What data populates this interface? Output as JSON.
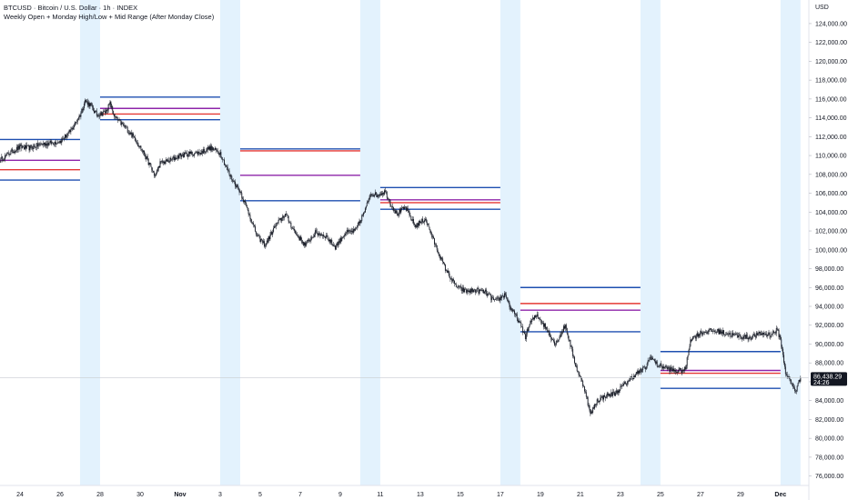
{
  "legend": {
    "title": "BTCUSD · Bitcoin / U.S. Dollar · 1h · INDEX",
    "indicator": "Weekly Open + Monday High/Low + Mid Range (After Monday Close)"
  },
  "currency": "USD",
  "current_price": {
    "value": "86,438.29",
    "countdown": "24:26",
    "numeric": 86438.29
  },
  "colors": {
    "candle": "#131722",
    "monday_session": "#e3f2fd",
    "monday_high_low": "#1e4fb0",
    "weekly_open": "#e53935",
    "mid_range": "#8e24aa",
    "price_tag": "#131722"
  },
  "chart_data": {
    "type": "line",
    "x_unit": "date (1h candles), Oct 23 – Dec 2",
    "ylim": [
      75000,
      126500
    ],
    "y_ticks": [
      "76,000.00",
      "78,000.00",
      "80,000.00",
      "82,000.00",
      "84,000.00",
      "86,000.00",
      "88,000.00",
      "90,000.00",
      "92,000.00",
      "94,000.00",
      "96,000.00",
      "98,000.00",
      "100,000.00",
      "102,000.00",
      "104,000.00",
      "106,000.00",
      "108,000.00",
      "110,000.00",
      "112,000.00",
      "114,000.00",
      "116,000.00",
      "118,000.00",
      "120,000.00",
      "122,000.00",
      "124,000.00"
    ],
    "x_ticks": [
      {
        "date": "Oct 24",
        "label": "24",
        "bold": false
      },
      {
        "date": "Oct 26",
        "label": "26",
        "bold": false
      },
      {
        "date": "Oct 28",
        "label": "28",
        "bold": false
      },
      {
        "date": "Oct 30",
        "label": "30",
        "bold": false
      },
      {
        "date": "Nov 1",
        "label": "Nov",
        "bold": true
      },
      {
        "date": "Nov 3",
        "label": "3",
        "bold": false
      },
      {
        "date": "Nov 5",
        "label": "5",
        "bold": false
      },
      {
        "date": "Nov 7",
        "label": "7",
        "bold": false
      },
      {
        "date": "Nov 9",
        "label": "9",
        "bold": false
      },
      {
        "date": "Nov 11",
        "label": "11",
        "bold": false
      },
      {
        "date": "Nov 13",
        "label": "13",
        "bold": false
      },
      {
        "date": "Nov 15",
        "label": "15",
        "bold": false
      },
      {
        "date": "Nov 17",
        "label": "17",
        "bold": false
      },
      {
        "date": "Nov 19",
        "label": "19",
        "bold": false
      },
      {
        "date": "Nov 21",
        "label": "21",
        "bold": false
      },
      {
        "date": "Nov 23",
        "label": "23",
        "bold": false
      },
      {
        "date": "Nov 25",
        "label": "25",
        "bold": false
      },
      {
        "date": "Nov 27",
        "label": "27",
        "bold": false
      },
      {
        "date": "Nov 29",
        "label": "29",
        "bold": false
      },
      {
        "date": "Dec 1",
        "label": "Dec",
        "bold": true
      }
    ],
    "monday_sessions": [
      {
        "start": "Oct 27 00:00",
        "end": "Oct 28 00:00"
      },
      {
        "start": "Nov 3 00:00",
        "end": "Nov 4 00:00"
      },
      {
        "start": "Nov 10 00:00",
        "end": "Nov 11 00:00"
      },
      {
        "start": "Nov 17 00:00",
        "end": "Nov 18 00:00"
      },
      {
        "start": "Nov 24 00:00",
        "end": "Nov 25 00:00"
      },
      {
        "start": "Dec 1 00:00",
        "end": "Dec 2 00:00"
      }
    ],
    "weekly_levels": [
      {
        "week_of": "Oct 20",
        "from": "Oct 23",
        "to": "Oct 27",
        "monday_high": 111700,
        "weekly_open": 108500,
        "mid_range": 109500,
        "monday_low": 107400
      },
      {
        "week_of": "Oct 27",
        "from": "Oct 28",
        "to": "Nov 3",
        "monday_high": 116200,
        "weekly_open": 114400,
        "mid_range": 115000,
        "monday_low": 113800
      },
      {
        "week_of": "Nov 3",
        "from": "Nov 4",
        "to": "Nov 10",
        "monday_high": 110700,
        "weekly_open": 110500,
        "mid_range": 107900,
        "monday_low": 105200
      },
      {
        "week_of": "Nov 10",
        "from": "Nov 11",
        "to": "Nov 17",
        "monday_high": 106600,
        "weekly_open": 105000,
        "mid_range": 105300,
        "monday_low": 104300
      },
      {
        "week_of": "Nov 17",
        "from": "Nov 18",
        "to": "Nov 24",
        "monday_high": 96000,
        "weekly_open": 94300,
        "mid_range": 93600,
        "monday_low": 91300
      },
      {
        "week_of": "Nov 24",
        "from": "Nov 25",
        "to": "Dec 1",
        "monday_high": 89200,
        "weekly_open": 86900,
        "mid_range": 87200,
        "monday_low": 85300
      }
    ],
    "series": [
      {
        "values": [
          [
            "Oct 23 00:00",
            109500
          ],
          [
            "Oct 23 12:00",
            110300
          ],
          [
            "Oct 24 00:00",
            110900
          ],
          [
            "Oct 24 12:00",
            110800
          ],
          [
            "Oct 25 00:00",
            111200
          ],
          [
            "Oct 25 12:00",
            111300
          ],
          [
            "Oct 26 00:00",
            111500
          ],
          [
            "Oct 26 12:00",
            112500
          ],
          [
            "Oct 27 00:00",
            114300
          ],
          [
            "Oct 27 06:00",
            115800
          ],
          [
            "Oct 27 12:00",
            115400
          ],
          [
            "Oct 27 20:00",
            114300
          ],
          [
            "Oct 28 06:00",
            114600
          ],
          [
            "Oct 28 12:00",
            115500
          ],
          [
            "Oct 28 18:00",
            114000
          ],
          [
            "Oct 29 06:00",
            113000
          ],
          [
            "Oct 29 18:00",
            111800
          ],
          [
            "Oct 30 06:00",
            110000
          ],
          [
            "Oct 30 18:00",
            107800
          ],
          [
            "Oct 31 00:00",
            109200
          ],
          [
            "Oct 31 12:00",
            109500
          ],
          [
            "Nov 1 00:00",
            110000
          ],
          [
            "Nov 1 12:00",
            110200
          ],
          [
            "Nov 2 00:00",
            110300
          ],
          [
            "Nov 2 12:00",
            110800
          ],
          [
            "Nov 3 00:00",
            110300
          ],
          [
            "Nov 3 12:00",
            107800
          ],
          [
            "Nov 4 00:00",
            106200
          ],
          [
            "Nov 4 12:00",
            103500
          ],
          [
            "Nov 4 20:00",
            101500
          ],
          [
            "Nov 5 06:00",
            100500
          ],
          [
            "Nov 5 18:00",
            102500
          ],
          [
            "Nov 6 06:00",
            103800
          ],
          [
            "Nov 6 18:00",
            101800
          ],
          [
            "Nov 7 06:00",
            100500
          ],
          [
            "Nov 7 18:00",
            101800
          ],
          [
            "Nov 8 06:00",
            101500
          ],
          [
            "Nov 8 18:00",
            100300
          ],
          [
            "Nov 9 06:00",
            101800
          ],
          [
            "Nov 9 18:00",
            102000
          ],
          [
            "Nov 10 06:00",
            104200
          ],
          [
            "Nov 10 12:00",
            106000
          ],
          [
            "Nov 10 20:00",
            105800
          ],
          [
            "Nov 11 06:00",
            106200
          ],
          [
            "Nov 11 12:00",
            105000
          ],
          [
            "Nov 11 20:00",
            103800
          ],
          [
            "Nov 12 06:00",
            104500
          ],
          [
            "Nov 12 18:00",
            102500
          ],
          [
            "Nov 13 06:00",
            103300
          ],
          [
            "Nov 13 18:00",
            100500
          ],
          [
            "Nov 14 06:00",
            98000
          ],
          [
            "Nov 14 18:00",
            96200
          ],
          [
            "Nov 15 06:00",
            95600
          ],
          [
            "Nov 15 18:00",
            95700
          ],
          [
            "Nov 16 06:00",
            95500
          ],
          [
            "Nov 16 18:00",
            94500
          ],
          [
            "Nov 17 06:00",
            95300
          ],
          [
            "Nov 17 12:00",
            93800
          ],
          [
            "Nov 17 20:00",
            92800
          ],
          [
            "Nov 18 06:00",
            90800
          ],
          [
            "Nov 18 12:00",
            92300
          ],
          [
            "Nov 18 20:00",
            93100
          ],
          [
            "Nov 19 06:00",
            91800
          ],
          [
            "Nov 19 18:00",
            90000
          ],
          [
            "Nov 20 06:00",
            92000
          ],
          [
            "Nov 20 18:00",
            87800
          ],
          [
            "Nov 21 06:00",
            85000
          ],
          [
            "Nov 21 12:00",
            82500
          ],
          [
            "Nov 21 20:00",
            84000
          ],
          [
            "Nov 22 06:00",
            84500
          ],
          [
            "Nov 22 18:00",
            84800
          ],
          [
            "Nov 23 06:00",
            85800
          ],
          [
            "Nov 23 18:00",
            86800
          ],
          [
            "Nov 24 06:00",
            87500
          ],
          [
            "Nov 24 12:00",
            88700
          ],
          [
            "Nov 24 20:00",
            87800
          ],
          [
            "Nov 25 06:00",
            87500
          ],
          [
            "Nov 25 18:00",
            87100
          ],
          [
            "Nov 26 06:00",
            87300
          ],
          [
            "Nov 26 12:00",
            90500
          ],
          [
            "Nov 27 00:00",
            91200
          ],
          [
            "Nov 27 12:00",
            91400
          ],
          [
            "Nov 28 00:00",
            91300
          ],
          [
            "Nov 28 12:00",
            91000
          ],
          [
            "Nov 29 00:00",
            90800
          ],
          [
            "Nov 29 12:00",
            90700
          ],
          [
            "Nov 30 00:00",
            91100
          ],
          [
            "Nov 30 12:00",
            91000
          ],
          [
            "Nov 30 20:00",
            91500
          ],
          [
            "Dec 1 00:00",
            90500
          ],
          [
            "Dec 1 06:00",
            87000
          ],
          [
            "Dec 1 12:00",
            86000
          ],
          [
            "Dec 1 18:00",
            85000
          ],
          [
            "Dec 2 00:00",
            86438
          ]
        ]
      }
    ]
  }
}
